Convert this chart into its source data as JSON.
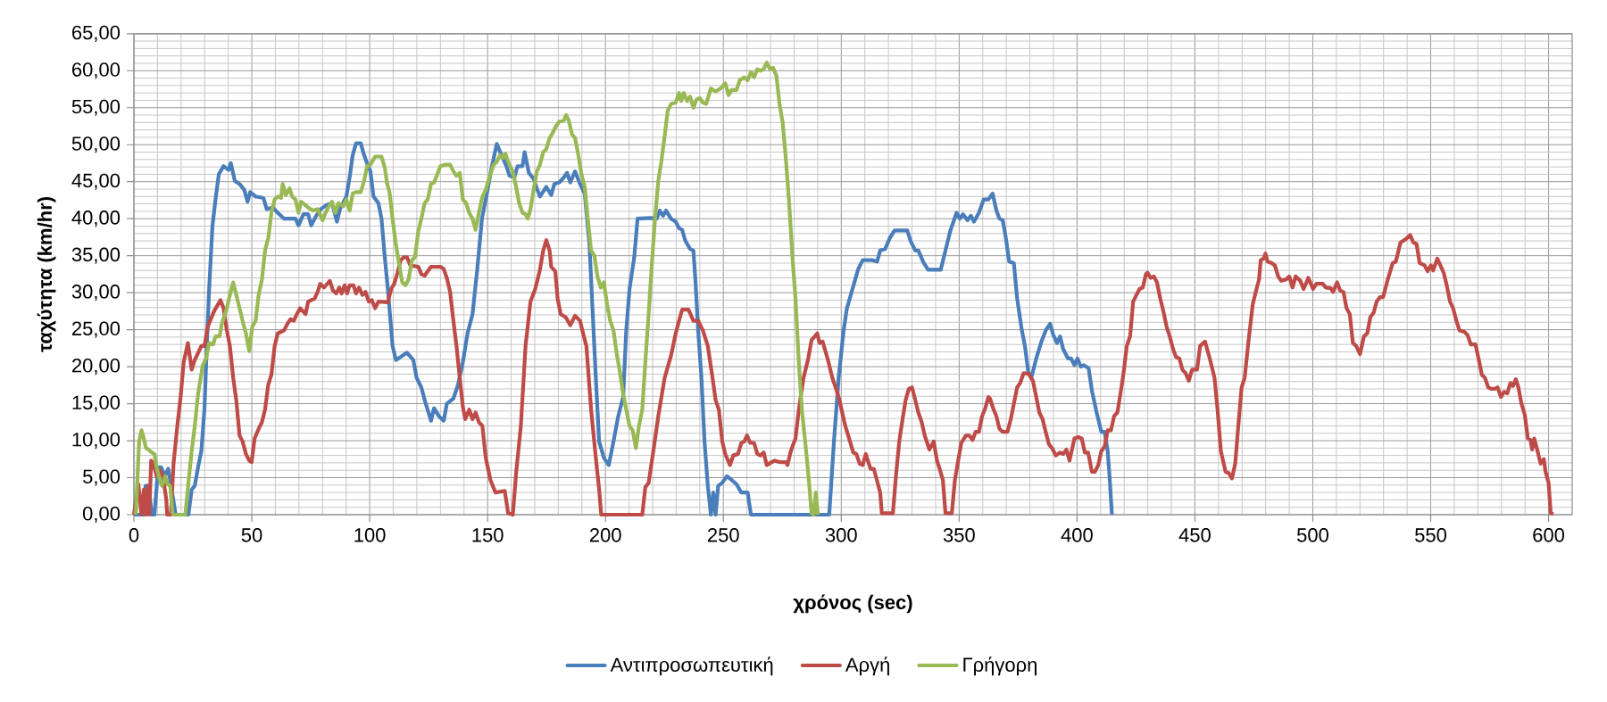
{
  "chart_data": {
    "type": "line",
    "xlabel": "χρόνος (sec)",
    "ylabel": "ταχύτητα (km/hr)",
    "xlim": [
      0,
      610
    ],
    "ylim": [
      0,
      65
    ],
    "xticks": [
      0,
      50,
      100,
      150,
      200,
      250,
      300,
      350,
      400,
      450,
      500,
      550,
      600
    ],
    "yticks": [
      {
        "value": 0,
        "label": "0,00"
      },
      {
        "value": 5,
        "label": "5,00"
      },
      {
        "value": 10,
        "label": "10,00"
      },
      {
        "value": 15,
        "label": "15,00"
      },
      {
        "value": 20,
        "label": "20,00"
      },
      {
        "value": 25,
        "label": "25,00"
      },
      {
        "value": 30,
        "label": "30,00"
      },
      {
        "value": 35,
        "label": "35,00"
      },
      {
        "value": 40,
        "label": "40,00"
      },
      {
        "value": 45,
        "label": "45,00"
      },
      {
        "value": 50,
        "label": "50,00"
      },
      {
        "value": 55,
        "label": "55,00"
      },
      {
        "value": 60,
        "label": "60,00"
      },
      {
        "value": 65,
        "label": "65,00"
      }
    ],
    "grid": true,
    "legend": "bottom",
    "series": [
      {
        "name": "Αντιπροσωπευτική",
        "color": "#4a7ebb",
        "x": [
          0,
          4.2,
          4.9,
          6.2,
          7.6,
          8.7,
          10.3,
          11.6,
          13.0,
          14.6,
          17.7,
          23.1,
          24.5,
          25.8,
          27.2,
          28.6,
          29.9,
          30.9,
          31.9,
          33.3,
          34.6,
          36.0,
          38.0,
          40.1,
          41.1,
          42.8,
          44.8,
          46.8,
          48.2,
          49.3,
          51.6,
          54.9,
          56.3,
          59.0,
          61.0,
          63.7,
          68.5,
          69.8,
          71.9,
          73.9,
          75.2,
          77.3,
          79.3,
          82.0,
          84.0,
          86.1,
          87.4,
          90.1,
          91.5,
          92.8,
          94.2,
          96.2,
          97.6,
          98.9,
          100.3,
          101.6,
          103.7,
          105.0,
          106.4,
          107.7,
          109.7,
          111.1,
          113.1,
          115.8,
          118.5,
          119.9,
          121.9,
          123.3,
          126.0,
          127.3,
          129.4,
          131.4,
          132.7,
          135.5,
          137.5,
          139.5,
          141.5,
          143.6,
          145.6,
          147.6,
          149.7,
          151.7,
          153.9,
          155.9,
          158.0,
          159.3,
          161.4,
          162.7,
          164.8,
          165.7,
          167.5,
          169.5,
          170.9,
          172.2,
          174.9,
          177.0,
          178.3,
          180.4,
          182.4,
          183.7,
          185.1,
          187.1,
          189.2,
          191.2,
          193.2,
          194.6,
          195.9,
          197.3,
          199.3,
          201.4,
          203.4,
          205.4,
          207.5,
          208.8,
          210.2,
          212.2,
          213.6,
          219.0,
          221.7,
          223.0,
          224.4,
          225.7,
          227.8,
          229.8,
          231.2,
          232.5,
          233.9,
          235.9,
          237.3,
          238.2,
          239.3,
          240.7,
          242.0,
          243.4,
          244.7,
          245.7,
          246.7,
          247.8,
          249.5,
          251.5,
          253.5,
          255.6,
          257.6,
          260.3,
          261.7,
          294.9,
          296.9,
          298.9,
          301.0,
          302.4,
          304.4,
          307.1,
          309.1,
          313.2,
          315.2,
          316.5,
          318.6,
          320.6,
          322.6,
          328.0,
          329.4,
          331.4,
          332.7,
          334.7,
          336.8,
          342.2,
          344.2,
          346.2,
          348.9,
          350.3,
          351.6,
          353.6,
          355.0,
          356.3,
          358.4,
          360.4,
          362.4,
          364.2,
          365.8,
          367.1,
          368.5,
          369.8,
          371.2,
          373.2,
          374.6,
          376.6,
          377.9,
          379.3,
          380.6,
          382.7,
          384.7,
          386.7,
          388.6,
          389.9,
          391.5,
          392.8,
          394.1,
          396.2,
          397.5,
          398.9,
          400.2,
          401.6,
          402.9,
          404.9,
          406.3,
          408.3,
          410.3,
          411.7,
          413.0,
          413.7,
          414.8
        ],
        "values": [
          0,
          0,
          3.9,
          3.9,
          0,
          0,
          6.4,
          6.4,
          5.2,
          6.2,
          0,
          0,
          3.4,
          3.9,
          6.4,
          8.6,
          14.2,
          22.8,
          30.5,
          39.0,
          42.6,
          46.0,
          47.1,
          46.6,
          47.5,
          45.1,
          44.7,
          43.9,
          42.3,
          43.6,
          43.0,
          42.8,
          41.3,
          41.5,
          40.8,
          40.0,
          40.0,
          39.1,
          40.6,
          40.6,
          39.1,
          40.4,
          41.3,
          41.9,
          42.1,
          39.6,
          41.3,
          43.0,
          45.6,
          48.6,
          50.2,
          50.2,
          48.6,
          47.5,
          46.4,
          43.0,
          42.1,
          40.0,
          34.8,
          30.5,
          22.8,
          20.9,
          21.3,
          21.9,
          20.9,
          18.5,
          17.2,
          15.5,
          12.7,
          14.4,
          13.3,
          12.7,
          15.0,
          15.7,
          17.6,
          20.6,
          24.5,
          27.1,
          33.1,
          40.0,
          43.4,
          46.9,
          50.1,
          48.6,
          47.1,
          45.8,
          45.6,
          47.1,
          47.1,
          49.0,
          46.2,
          45.4,
          44.1,
          43.0,
          44.3,
          43.2,
          44.7,
          44.9,
          45.6,
          46.2,
          44.9,
          46.4,
          44.7,
          43.4,
          36.5,
          27.1,
          18.5,
          9.9,
          7.7,
          6.7,
          9.9,
          13.3,
          15.9,
          24.9,
          30.5,
          34.8,
          40.0,
          40.1,
          40.0,
          41.1,
          40.4,
          41.1,
          40.0,
          39.6,
          38.7,
          38.5,
          37.0,
          35.9,
          35.7,
          31.4,
          24.9,
          18.5,
          9.9,
          3.9,
          0,
          3.0,
          0,
          3.9,
          4.3,
          5.2,
          4.7,
          4.1,
          3.0,
          3.0,
          0,
          0,
          9.9,
          18.5,
          24.9,
          27.9,
          30.1,
          33.1,
          34.4,
          34.4,
          34.2,
          35.7,
          35.9,
          37.4,
          38.4,
          38.4,
          37.0,
          35.7,
          35.7,
          34.2,
          33.1,
          33.1,
          35.7,
          38.3,
          40.8,
          40.0,
          40.6,
          39.8,
          40.4,
          39.6,
          40.8,
          42.6,
          42.6,
          43.4,
          41.1,
          40.0,
          39.8,
          37.4,
          34.2,
          34.0,
          29.2,
          24.9,
          22.8,
          19.3,
          18.5,
          21.1,
          23.2,
          24.9,
          25.8,
          24.3,
          23.2,
          24.1,
          22.4,
          21.1,
          21.1,
          20.2,
          21.1,
          20.0,
          20.2,
          19.8,
          16.8,
          13.8,
          11.2,
          11.2,
          8.6,
          5.6,
          0
        ]
      },
      {
        "name": "Αργή",
        "color": "#be4b48",
        "x": [
          0,
          1.9,
          3.2,
          4.2,
          5.1,
          6.0,
          6.5,
          7.3,
          8.3,
          9.6,
          11.0,
          12.3,
          13.7,
          14.1,
          15.7,
          16.8,
          18.4,
          19.8,
          21.1,
          22.9,
          24.5,
          25.8,
          28.6,
          29.9,
          31.3,
          34.0,
          36.7,
          38.0,
          39.4,
          40.7,
          42.1,
          43.4,
          44.8,
          46.1,
          47.5,
          48.9,
          49.9,
          51.2,
          52.9,
          54.3,
          55.6,
          57.0,
          58.3,
          59.7,
          61.0,
          63.7,
          65.1,
          66.4,
          67.8,
          69.1,
          70.5,
          72.8,
          73.9,
          76.6,
          77.9,
          79.0,
          80.6,
          83.1,
          84.4,
          85.8,
          87.1,
          88.1,
          89.4,
          90.4,
          91.5,
          93.1,
          94.2,
          95.5,
          96.9,
          98.2,
          99.6,
          100.9,
          102.3,
          103.7,
          107.7,
          109.1,
          110.4,
          111.8,
          113.1,
          114.5,
          115.8,
          117.2,
          120.6,
          121.9,
          123.3,
          126.0,
          130.0,
          131.4,
          132.7,
          134.1,
          135.5,
          136.8,
          138.2,
          139.5,
          140.5,
          142.2,
          143.6,
          144.9,
          146.3,
          147.8,
          149.2,
          151.2,
          153.3,
          157.3,
          158.7,
          160.7,
          162.1,
          164.1,
          166.1,
          168.2,
          170.2,
          172.2,
          173.6,
          174.9,
          176.3,
          177.0,
          178.7,
          179.7,
          181.0,
          183.1,
          185.1,
          187.1,
          189.2,
          190.5,
          191.9,
          193.9,
          195.9,
          197.3,
          198.2,
          215.6,
          216.9,
          218.3,
          220.3,
          222.4,
          225.1,
          227.8,
          229.8,
          231.2,
          232.5,
          235.2,
          237.3,
          239.3,
          241.3,
          243.4,
          245.4,
          246.7,
          248.1,
          249.5,
          250.8,
          252.8,
          254.2,
          256.2,
          257.6,
          258.9,
          260.0,
          261.4,
          263.0,
          264.4,
          265.7,
          267.1,
          268.4,
          270.5,
          271.8,
          273.8,
          276.6,
          277.2,
          278.6,
          280.6,
          282.0,
          284.0,
          286.0,
          287.4,
          288.8,
          289.8,
          290.8,
          292.1,
          294.2,
          296.2,
          297.6,
          298.9,
          301.7,
          303.7,
          305.1,
          306.4,
          307.8,
          309.1,
          310.4,
          312.4,
          313.8,
          315.1,
          316.5,
          317.2,
          321.9,
          323.3,
          324.6,
          326.0,
          327.3,
          328.7,
          330.0,
          331.4,
          332.7,
          334.1,
          335.4,
          337.4,
          339.2,
          340.6,
          341.9,
          343.1,
          344.2,
          346.9,
          348.2,
          349.6,
          350.9,
          352.9,
          354.3,
          355.7,
          357.0,
          358.4,
          359.7,
          361.1,
          362.4,
          363.1,
          364.4,
          365.8,
          367.1,
          368.5,
          370.5,
          371.9,
          373.2,
          374.6,
          375.9,
          377.3,
          379.3,
          381.3,
          382.7,
          384.0,
          385.4,
          386.7,
          388.1,
          389.4,
          391.0,
          392.8,
          394.1,
          395.5,
          396.8,
          398.9,
          400.6,
          402.0,
          403.3,
          404.7,
          406.3,
          407.6,
          409.0,
          410.3,
          411.7,
          413.0,
          414.4,
          415.7,
          417.1,
          418.4,
          419.8,
          421.1,
          422.5,
          423.8,
          425.2,
          426.5,
          427.9,
          429.2,
          429.9,
          431.2,
          432.6,
          433.9,
          435.3,
          436.6,
          438.0,
          439.3,
          440.7,
          442.0,
          443.4,
          444.7,
          446.1,
          447.4,
          448.8,
          450.9,
          452.2,
          454.3,
          456.3,
          458.3,
          459.6,
          461.0,
          463.0,
          464.4,
          465.7,
          467.1,
          468.4,
          469.8,
          471.1,
          472.5,
          474.5,
          475.8,
          477.2,
          477.9,
          479.2,
          479.9,
          480.8,
          482.6,
          483.9,
          485.3,
          486.6,
          488.7,
          490.0,
          491.4,
          492.7,
          494.7,
          496.1,
          498.1,
          500.1,
          501.5,
          504.2,
          505.5,
          507.6,
          508.6,
          510.3,
          511.6,
          513.0,
          514.3,
          515.7,
          517.0,
          518.4,
          520.0,
          521.7,
          523.1,
          524.4,
          525.8,
          527.1,
          528.5,
          529.8,
          531.8,
          533.9,
          535.2,
          537.2,
          539.3,
          541.3,
          542.6,
          544.0,
          545.3,
          547.4,
          548.7,
          550.1,
          551.0,
          552.8,
          554.1,
          555.5,
          556.8,
          558.2,
          559.5,
          560.9,
          562.2,
          564.3,
          565.6,
          567.0,
          569.0,
          570.3,
          571.7,
          573.0,
          574.4,
          575.7,
          577.1,
          578.4,
          579.8,
          581.1,
          582.5,
          583.8,
          584.9,
          586.1,
          587.2,
          588.5,
          589.9,
          591.2,
          592.3,
          593.0,
          593.9,
          595.3,
          596.6,
          598.0,
          598.7,
          600.0,
          600.9,
          602.0
        ],
        "values": [
          0,
          4.1,
          0,
          3.4,
          0,
          3.9,
          0,
          7.3,
          6.9,
          5.2,
          6.0,
          5.2,
          2.1,
          0,
          0,
          6.9,
          12.0,
          15.9,
          20.6,
          23.2,
          19.6,
          20.9,
          22.8,
          22.8,
          25.4,
          27.5,
          29.0,
          27.9,
          24.9,
          22.8,
          18.5,
          15.5,
          10.7,
          9.9,
          8.2,
          7.3,
          7.1,
          10.3,
          11.6,
          12.5,
          14.2,
          17.6,
          18.9,
          22.8,
          24.5,
          24.9,
          25.8,
          26.4,
          26.2,
          27.1,
          27.9,
          27.1,
          28.8,
          29.2,
          30.1,
          31.2,
          30.7,
          31.6,
          30.3,
          29.9,
          30.7,
          29.9,
          31.0,
          29.9,
          31.0,
          31.0,
          29.9,
          30.7,
          29.7,
          30.1,
          28.8,
          29.0,
          27.9,
          28.8,
          28.7,
          30.5,
          31.2,
          32.7,
          34.4,
          34.8,
          34.8,
          33.7,
          33.5,
          32.5,
          32.3,
          33.5,
          33.5,
          33.2,
          32.0,
          30.1,
          26.2,
          22.8,
          18.5,
          14.6,
          12.9,
          14.2,
          12.9,
          13.8,
          12.5,
          12.0,
          7.7,
          4.7,
          3.0,
          3.2,
          0.2,
          0,
          5.6,
          12.0,
          22.8,
          28.8,
          30.5,
          33.1,
          35.7,
          37.1,
          35.7,
          33.5,
          32.9,
          29.2,
          27.1,
          26.7,
          25.6,
          26.9,
          26.2,
          24.5,
          22.8,
          14.2,
          7.7,
          3.4,
          0,
          0,
          3.7,
          4.3,
          8.6,
          13.3,
          18.5,
          21.5,
          24.5,
          26.2,
          27.7,
          27.7,
          26.2,
          26.2,
          24.9,
          22.8,
          18.5,
          15.5,
          14.2,
          9.9,
          8.2,
          6.7,
          8.0,
          8.2,
          9.7,
          9.9,
          10.7,
          9.7,
          9.7,
          8.2,
          8.0,
          8.4,
          6.7,
          7.1,
          7.3,
          7.1,
          7.1,
          6.7,
          8.6,
          10.3,
          14.2,
          18.5,
          21.1,
          23.6,
          24.1,
          24.5,
          23.2,
          23.4,
          21.1,
          18.5,
          17.2,
          15.9,
          12.0,
          9.9,
          8.4,
          8.2,
          6.9,
          6.7,
          8.2,
          6.2,
          6.2,
          4.7,
          3.0,
          0.2,
          0.2,
          5.6,
          9.9,
          12.9,
          15.5,
          17.0,
          17.2,
          15.5,
          13.8,
          12.5,
          10.7,
          8.8,
          9.9,
          7.3,
          6.0,
          4.7,
          0.2,
          0.2,
          4.7,
          7.3,
          9.7,
          10.7,
          10.7,
          10.1,
          11.2,
          11.2,
          13.3,
          14.4,
          15.9,
          15.7,
          14.4,
          13.3,
          11.6,
          11.2,
          11.2,
          12.9,
          15.0,
          17.2,
          17.8,
          19.1,
          19.1,
          18.1,
          15.9,
          13.8,
          12.9,
          11.2,
          9.5,
          9.0,
          8.0,
          8.4,
          8.2,
          8.8,
          7.3,
          10.3,
          10.5,
          10.3,
          8.4,
          8.4,
          5.8,
          5.8,
          6.7,
          8.6,
          9.2,
          11.4,
          11.4,
          13.3,
          13.8,
          16.3,
          19.3,
          22.8,
          24.1,
          28.8,
          29.7,
          30.5,
          30.7,
          32.5,
          32.7,
          32.0,
          32.2,
          31.4,
          29.2,
          27.5,
          25.4,
          24.1,
          22.4,
          21.3,
          21.1,
          19.6,
          19.1,
          18.1,
          19.6,
          19.6,
          22.8,
          23.4,
          21.1,
          18.5,
          14.2,
          8.6,
          5.8,
          5.6,
          4.9,
          6.9,
          12.0,
          17.2,
          18.5,
          22.8,
          28.4,
          30.1,
          31.8,
          34.4,
          34.6,
          35.3,
          34.2,
          34.0,
          33.7,
          32.2,
          31.6,
          31.8,
          32.2,
          30.7,
          32.2,
          31.6,
          30.5,
          32.0,
          30.5,
          31.2,
          31.2,
          30.7,
          30.6,
          30.1,
          31.4,
          30.3,
          30.1,
          27.9,
          27.1,
          23.2,
          22.8,
          21.7,
          24.1,
          24.5,
          26.7,
          27.3,
          28.8,
          29.4,
          29.4,
          31.8,
          34.0,
          34.2,
          36.8,
          37.2,
          37.8,
          36.8,
          36.6,
          34.0,
          33.7,
          32.9,
          33.7,
          33.0,
          34.6,
          33.7,
          32.7,
          31.0,
          28.8,
          27.9,
          26.2,
          24.9,
          24.7,
          24.3,
          23.0,
          23.0,
          21.1,
          18.9,
          18.5,
          17.2,
          17.0,
          17.0,
          17.2,
          15.9,
          16.6,
          16.4,
          17.8,
          17.4,
          18.3,
          17.2,
          15.0,
          13.5,
          10.3,
          10.1,
          8.8,
          10.3,
          8.6,
          6.9,
          7.5,
          5.8,
          4.3,
          0.2,
          0.1
        ]
      },
      {
        "name": "Γρήγορη",
        "color": "#98b954",
        "x": [
          0.8,
          2.2,
          3.2,
          4.2,
          5.1,
          6.2,
          7.6,
          8.7,
          9.6,
          11.0,
          11.9,
          13.3,
          14.3,
          15.4,
          16.4,
          17.1,
          21.8,
          23.1,
          24.5,
          25.8,
          27.2,
          29.2,
          30.6,
          31.9,
          33.6,
          34.6,
          36.3,
          37.3,
          39.4,
          40.7,
          42.1,
          43.4,
          44.8,
          46.1,
          47.5,
          48.9,
          50.2,
          51.6,
          52.9,
          54.3,
          55.6,
          57.0,
          58.3,
          59.7,
          61.0,
          62.4,
          63.1,
          64.4,
          66.0,
          67.1,
          68.5,
          69.8,
          70.9,
          72.5,
          73.9,
          75.9,
          77.9,
          80.0,
          81.3,
          82.7,
          84.0,
          85.4,
          86.7,
          88.8,
          90.1,
          91.5,
          92.8,
          94.2,
          96.2,
          97.6,
          98.9,
          100.3,
          102.3,
          105.0,
          106.4,
          107.4,
          108.4,
          109.7,
          111.1,
          112.4,
          113.8,
          115.2,
          116.5,
          117.9,
          119.2,
          120.6,
          121.9,
          123.3,
          124.6,
          126.0,
          127.3,
          128.7,
          130.0,
          132.1,
          134.1,
          135.5,
          136.8,
          138.2,
          139.5,
          140.9,
          142.2,
          143.6,
          144.9,
          146.3,
          147.8,
          149.2,
          151.2,
          152.6,
          153.9,
          155.3,
          156.6,
          157.6,
          158.7,
          160.7,
          162.1,
          163.4,
          164.8,
          166.1,
          167.1,
          168.2,
          169.5,
          170.9,
          172.2,
          173.6,
          174.9,
          176.3,
          177.6,
          179.0,
          180.4,
          182.4,
          183.3,
          184.4,
          185.8,
          187.1,
          188.5,
          189.8,
          191.2,
          192.5,
          193.9,
          195.3,
          196.6,
          198.0,
          199.3,
          200.7,
          202.0,
          203.4,
          204.7,
          206.1,
          207.5,
          208.8,
          210.2,
          211.5,
          212.9,
          214.2,
          215.6,
          216.9,
          218.3,
          219.6,
          221.0,
          222.4,
          223.7,
          225.1,
          226.4,
          227.8,
          229.8,
          231.2,
          232.1,
          233.2,
          234.6,
          235.9,
          237.3,
          238.6,
          240.0,
          241.3,
          242.7,
          244.7,
          246.7,
          248.8,
          250.8,
          252.2,
          253.5,
          255.6,
          256.9,
          258.9,
          260.3,
          261.7,
          263.0,
          264.4,
          265.7,
          267.1,
          268.4,
          269.8,
          271.1,
          272.5,
          273.8,
          275.2,
          276.6,
          277.9,
          279.3,
          280.6,
          282.0,
          283.3,
          284.7,
          286.0,
          287.4,
          288.3,
          289.2,
          290.1
        ],
        "values": [
          0,
          9.9,
          11.4,
          10.3,
          9.0,
          8.8,
          8.4,
          8.2,
          6.4,
          4.7,
          3.9,
          5.2,
          4.1,
          3.9,
          0.2,
          0,
          0,
          4.3,
          8.6,
          12.0,
          16.3,
          20.2,
          21.1,
          23.2,
          23.0,
          24.1,
          24.1,
          25.8,
          27.9,
          29.7,
          31.4,
          29.7,
          27.9,
          26.2,
          24.5,
          22.1,
          25.4,
          26.2,
          29.7,
          31.8,
          35.7,
          37.4,
          40.8,
          42.6,
          43.0,
          42.8,
          44.7,
          43.2,
          44.1,
          43.0,
          42.6,
          40.8,
          42.3,
          41.9,
          41.5,
          41.1,
          41.3,
          39.8,
          40.8,
          41.7,
          42.3,
          40.8,
          42.1,
          41.7,
          42.6,
          41.1,
          43.4,
          43.6,
          43.6,
          45.1,
          47.1,
          47.3,
          48.4,
          48.4,
          46.9,
          44.7,
          43.6,
          40.0,
          36.5,
          34.0,
          31.4,
          31.0,
          31.8,
          34.4,
          34.8,
          38.3,
          40.0,
          42.1,
          42.6,
          44.7,
          44.9,
          46.0,
          47.1,
          47.3,
          47.3,
          46.4,
          45.8,
          46.2,
          42.6,
          42.1,
          40.8,
          40.0,
          38.5,
          40.8,
          43.0,
          43.9,
          46.0,
          47.3,
          47.7,
          48.6,
          48.2,
          48.8,
          47.7,
          46.4,
          44.3,
          42.1,
          40.8,
          40.6,
          40.0,
          41.3,
          43.9,
          46.4,
          47.3,
          49.0,
          49.4,
          50.9,
          51.6,
          52.5,
          53.1,
          53.3,
          54.0,
          53.3,
          51.4,
          50.9,
          48.6,
          46.0,
          44.3,
          40.0,
          35.7,
          35.0,
          32.2,
          30.7,
          31.4,
          28.4,
          26.2,
          24.9,
          21.9,
          19.3,
          16.3,
          14.2,
          12.0,
          11.4,
          9.0,
          12.0,
          14.2,
          20.6,
          27.1,
          33.5,
          40.0,
          45.1,
          47.7,
          51.2,
          54.6,
          55.5,
          55.7,
          57.0,
          55.9,
          57.0,
          55.9,
          56.5,
          55.0,
          56.1,
          56.3,
          55.7,
          55.5,
          57.6,
          57.2,
          57.6,
          58.3,
          56.7,
          57.4,
          57.4,
          58.7,
          59.1,
          58.7,
          59.8,
          59.1,
          60.2,
          60.0,
          60.2,
          61.1,
          60.2,
          60.4,
          59.3,
          55.5,
          52.9,
          47.7,
          42.1,
          34.8,
          29.2,
          20.6,
          14.2,
          9.9,
          5.6,
          0.2,
          0,
          3.0,
          0
        ]
      }
    ]
  }
}
